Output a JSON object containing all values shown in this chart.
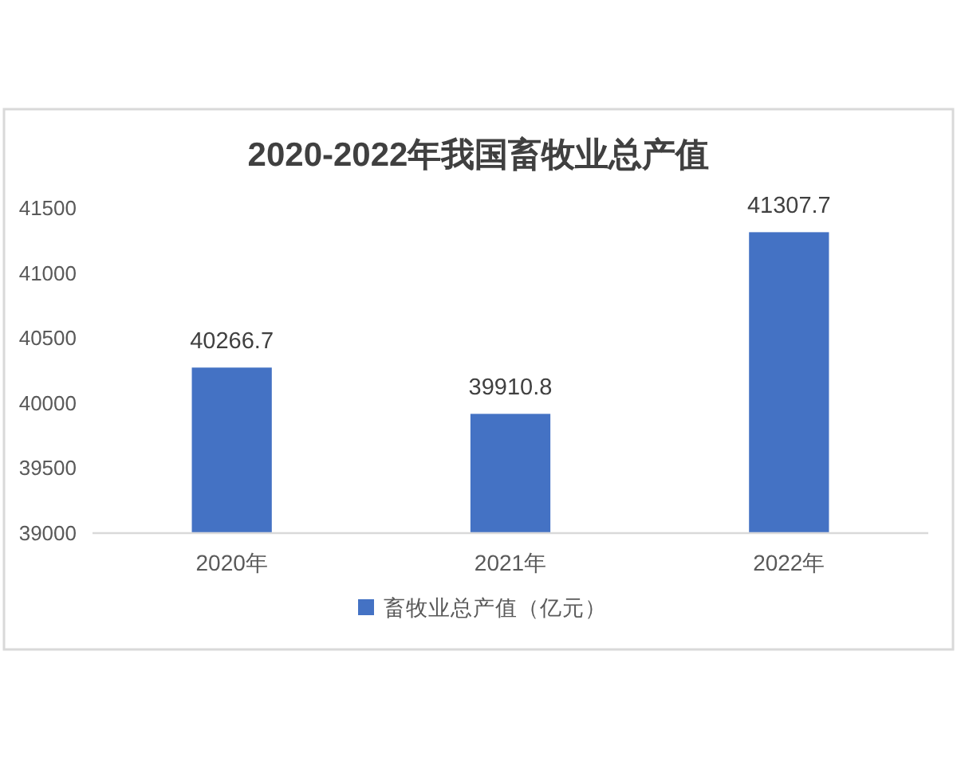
{
  "chart_data": {
    "type": "bar",
    "title": "2020-2022年我国畜牧业总产值",
    "categories": [
      "2020年",
      "2021年",
      "2022年"
    ],
    "series": [
      {
        "name": "畜牧业总产值（亿元）",
        "color": "#4472c4",
        "values": [
          40266.7,
          39910.8,
          41307.7
        ]
      }
    ],
    "ylim": [
      39000,
      41500
    ],
    "yticks": [
      39000,
      39500,
      40000,
      40500,
      41000,
      41500
    ],
    "data_labels": true,
    "legend": "bottom"
  }
}
